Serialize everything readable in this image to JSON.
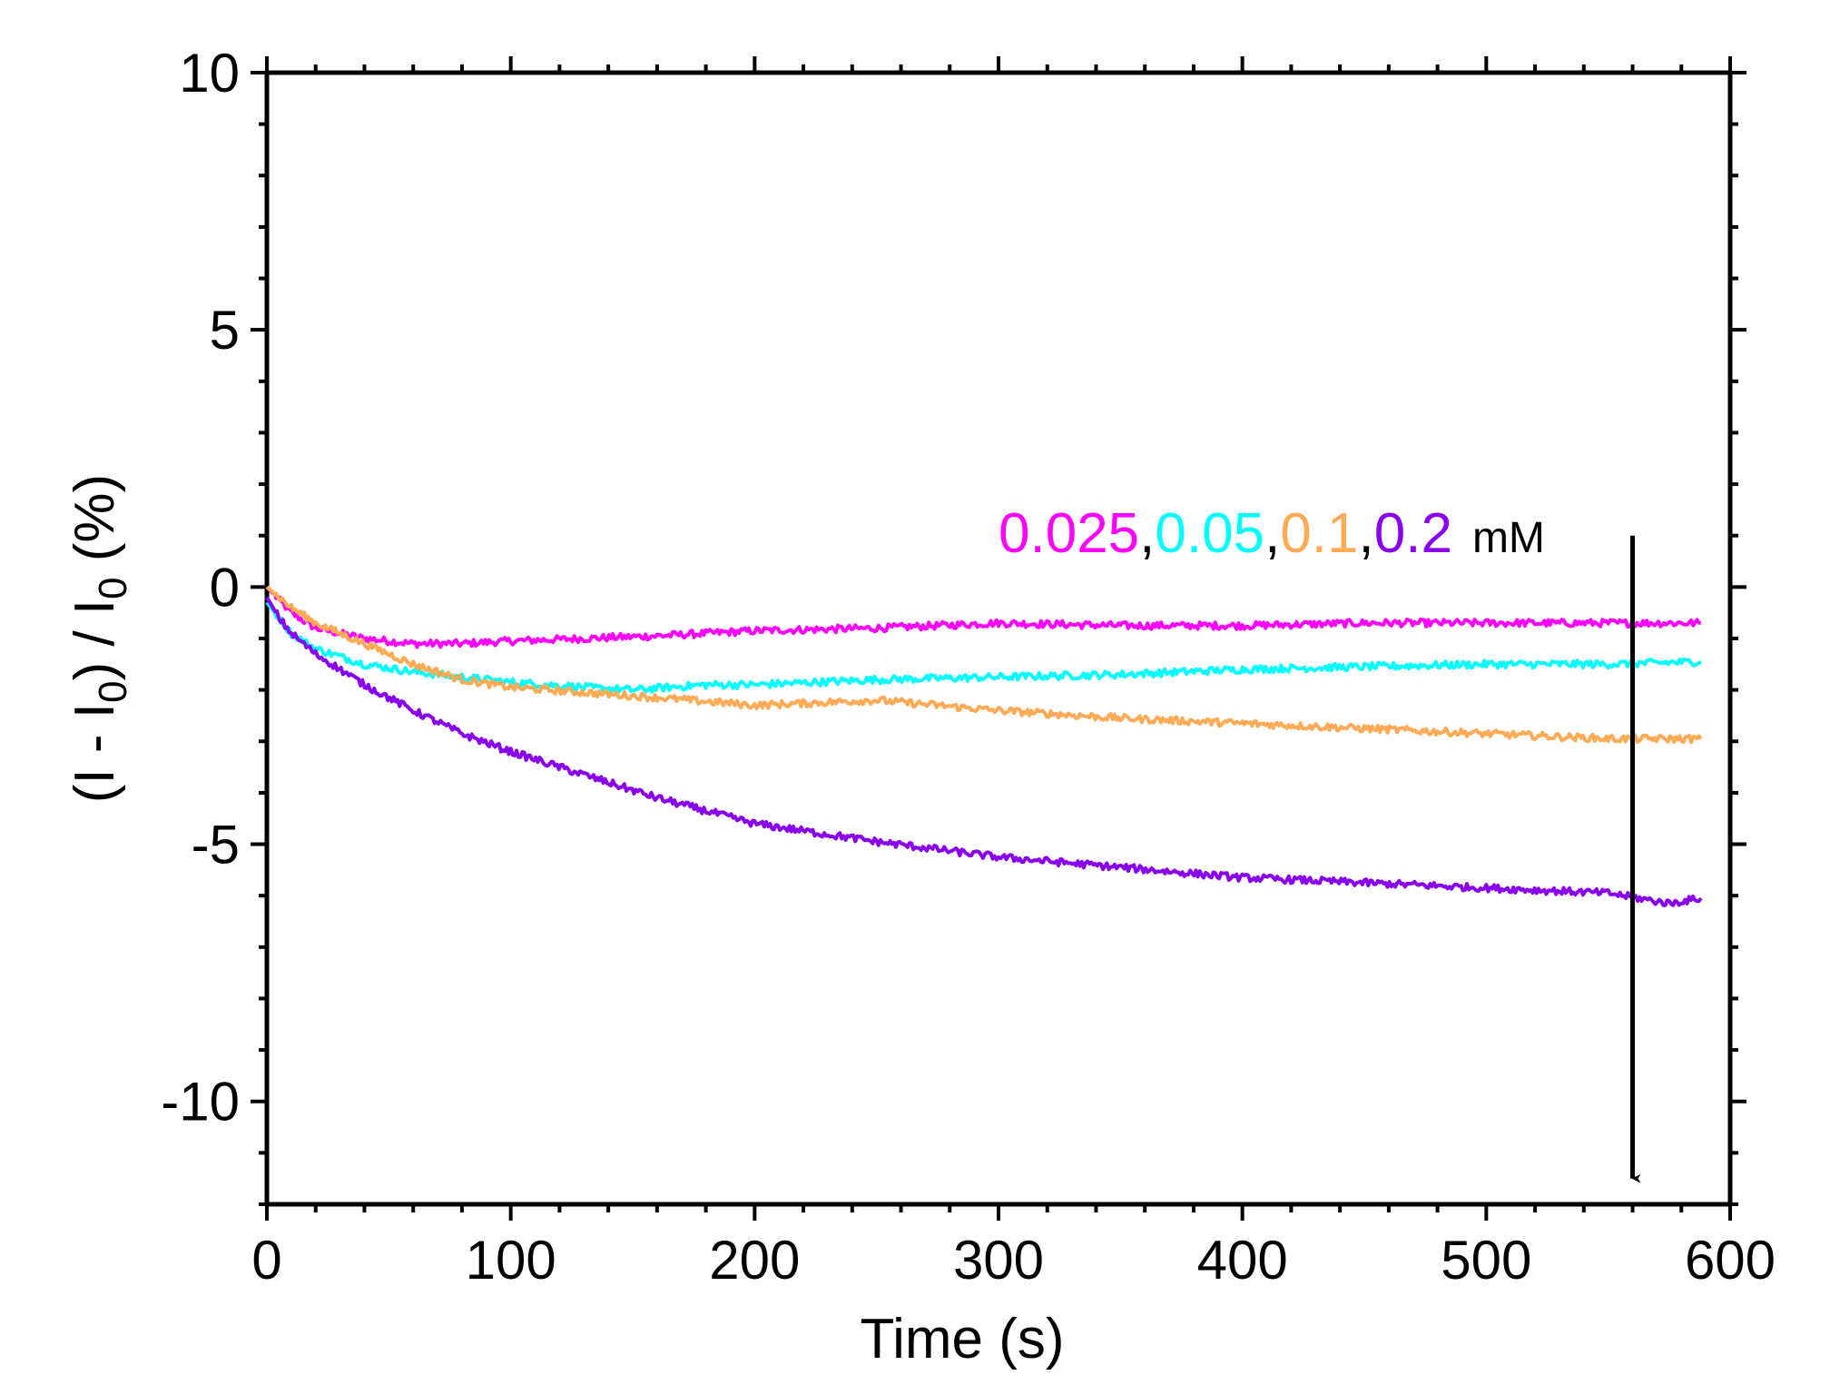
{
  "chart_data": {
    "type": "line",
    "title": "",
    "xlabel": "Time (s)",
    "ylabel": {
      "part1": "(I - I",
      "sub1": "0",
      "part2": ") / I",
      "sub2": "0",
      "part3": " (%)"
    },
    "xlim": [
      0,
      600
    ],
    "ylim": [
      -12,
      10
    ],
    "xticks": [
      0,
      100,
      200,
      300,
      400,
      500,
      600
    ],
    "xtick_labels": [
      "0",
      "100",
      "200",
      "300",
      "400",
      "500",
      "600"
    ],
    "yticks": [
      10,
      5,
      0,
      -5,
      -10
    ],
    "ytick_labels": [
      "10",
      "5",
      "0",
      "-5",
      "-10"
    ],
    "series": [
      {
        "name": "0.025",
        "color": "#ff00ff",
        "x": [
          0,
          10,
          20,
          40,
          60,
          80,
          100,
          130,
          160,
          200,
          250,
          300,
          350,
          400,
          450,
          500,
          550,
          588
        ],
        "y": [
          0,
          -0.5,
          -0.8,
          -1.0,
          -1.1,
          -1.1,
          -1.05,
          -1.0,
          -0.95,
          -0.85,
          -0.8,
          -0.7,
          -0.75,
          -0.75,
          -0.7,
          -0.7,
          -0.7,
          -0.7
        ]
      },
      {
        "name": "0.05",
        "color": "#00ffff",
        "x": [
          0,
          10,
          20,
          40,
          60,
          80,
          100,
          130,
          150,
          180,
          200,
          250,
          300,
          350,
          400,
          450,
          500,
          550,
          588
        ],
        "y": [
          -0.3,
          -0.9,
          -1.2,
          -1.5,
          -1.65,
          -1.75,
          -1.85,
          -1.95,
          -2.0,
          -1.9,
          -1.9,
          -1.8,
          -1.75,
          -1.7,
          -1.6,
          -1.55,
          -1.5,
          -1.5,
          -1.45
        ]
      },
      {
        "name": "0.1",
        "color": "#ffaa55",
        "x": [
          0,
          10,
          20,
          40,
          60,
          80,
          100,
          130,
          160,
          200,
          250,
          300,
          350,
          400,
          450,
          500,
          550,
          588
        ],
        "y": [
          0,
          -0.4,
          -0.7,
          -1.1,
          -1.5,
          -1.8,
          -1.95,
          -2.05,
          -2.15,
          -2.3,
          -2.2,
          -2.4,
          -2.55,
          -2.65,
          -2.75,
          -2.85,
          -2.95,
          -2.95
        ]
      },
      {
        "name": "0.2",
        "color": "#8800ee",
        "x": [
          0,
          5,
          10,
          20,
          40,
          60,
          80,
          100,
          130,
          160,
          200,
          250,
          300,
          350,
          400,
          450,
          500,
          550,
          575,
          588
        ],
        "y": [
          -0.2,
          -0.6,
          -0.9,
          -1.3,
          -1.9,
          -2.4,
          -2.85,
          -3.2,
          -3.65,
          -4.1,
          -4.6,
          -4.95,
          -5.25,
          -5.45,
          -5.65,
          -5.75,
          -5.85,
          -5.95,
          -6.15,
          -6.05
        ]
      }
    ],
    "annotation": {
      "labels": [
        {
          "text": "0.025",
          "color": "#ff00ff"
        },
        {
          "text": ",",
          "color": "#000000"
        },
        {
          "text": "0.05",
          "color": "#00ffff"
        },
        {
          "text": ",",
          "color": "#000000"
        },
        {
          "text": "0.1",
          "color": "#ffaa55"
        },
        {
          "text": ",",
          "color": "#000000"
        },
        {
          "text": "0.2",
          "color": "#8800ee"
        }
      ],
      "unit": "mM",
      "arrow": {
        "x": 560,
        "y_from": 1.0,
        "y_to": -11.5
      }
    }
  }
}
